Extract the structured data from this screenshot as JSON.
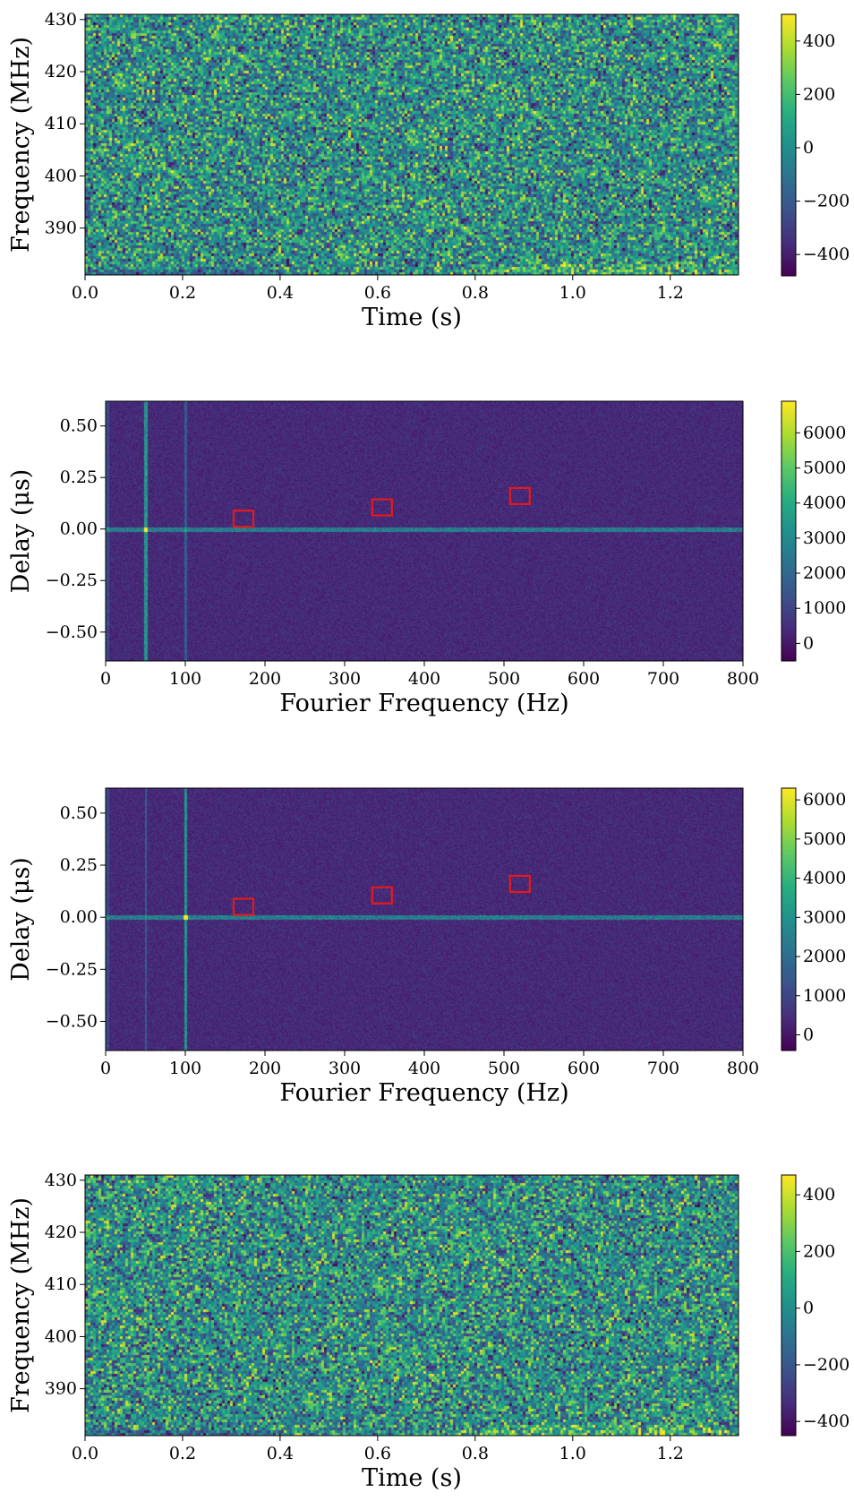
{
  "chart_data": [
    {
      "type": "heatmap",
      "id": "dynamic-spectrum-top",
      "xlabel": "Time (s)",
      "ylabel": "Frequency (MHz)",
      "xlim": [
        0.0,
        1.34
      ],
      "ylim": [
        381,
        431
      ],
      "xticks": [
        0.0,
        0.2,
        0.4,
        0.6,
        0.8,
        1.0,
        1.2
      ],
      "xtick_labels": [
        "0.0",
        "0.2",
        "0.4",
        "0.6",
        "0.8",
        "1.0",
        "1.2"
      ],
      "yticks": [
        390,
        400,
        410,
        420,
        430
      ],
      "ytick_labels": [
        "390",
        "400",
        "410",
        "420",
        "430"
      ],
      "colorscale": "viridis",
      "clim": [
        -480,
        500
      ],
      "colorbar_ticks": [
        400,
        200,
        0,
        -200,
        -400
      ],
      "colorbar_tick_labels": [
        "400",
        "200",
        "0",
        "−200",
        "−400"
      ],
      "pattern": "noise",
      "markers": []
    },
    {
      "type": "heatmap",
      "id": "secondary-spectrum-1",
      "xlabel": "Fourier Frequency (Hz)",
      "ylabel": "Delay (μs)",
      "xlim": [
        0,
        800
      ],
      "ylim": [
        -0.64,
        0.62
      ],
      "xticks": [
        0,
        100,
        200,
        300,
        400,
        500,
        600,
        700,
        800
      ],
      "xtick_labels": [
        "0",
        "100",
        "200",
        "300",
        "400",
        "500",
        "600",
        "700",
        "800"
      ],
      "yticks": [
        0.5,
        0.25,
        0.0,
        -0.25,
        -0.5
      ],
      "ytick_labels": [
        "0.50",
        "0.25",
        "0.00",
        "−0.25",
        "−0.50"
      ],
      "colorscale": "viridis",
      "clim": [
        -500,
        6900
      ],
      "colorbar_ticks": [
        6000,
        5000,
        4000,
        3000,
        2000,
        1000,
        0
      ],
      "colorbar_tick_labels": [
        "6000",
        "5000",
        "4000",
        "3000",
        "2000",
        "1000",
        "0"
      ],
      "pattern": "secondary",
      "strong_line_hz": 50,
      "markers": [
        {
          "x": 173,
          "y": 0.05
        },
        {
          "x": 347,
          "y": 0.105
        },
        {
          "x": 520,
          "y": 0.16
        }
      ]
    },
    {
      "type": "heatmap",
      "id": "secondary-spectrum-2",
      "xlabel": "Fourier Frequency (Hz)",
      "ylabel": "Delay (μs)",
      "xlim": [
        0,
        800
      ],
      "ylim": [
        -0.64,
        0.62
      ],
      "xticks": [
        0,
        100,
        200,
        300,
        400,
        500,
        600,
        700,
        800
      ],
      "xtick_labels": [
        "0",
        "100",
        "200",
        "300",
        "400",
        "500",
        "600",
        "700",
        "800"
      ],
      "yticks": [
        0.5,
        0.25,
        0.0,
        -0.25,
        -0.5
      ],
      "ytick_labels": [
        "0.50",
        "0.25",
        "0.00",
        "−0.25",
        "−0.50"
      ],
      "colorscale": "viridis",
      "clim": [
        -400,
        6300
      ],
      "colorbar_ticks": [
        6000,
        5000,
        4000,
        3000,
        2000,
        1000,
        0
      ],
      "colorbar_tick_labels": [
        "6000",
        "5000",
        "4000",
        "3000",
        "2000",
        "1000",
        "0"
      ],
      "pattern": "secondary",
      "strong_line_hz": 100,
      "markers": [
        {
          "x": 173,
          "y": 0.05
        },
        {
          "x": 347,
          "y": 0.105
        },
        {
          "x": 520,
          "y": 0.16
        }
      ]
    },
    {
      "type": "heatmap",
      "id": "dynamic-spectrum-bottom",
      "xlabel": "Time (s)",
      "ylabel": "Frequency (MHz)",
      "xlim": [
        0.0,
        1.34
      ],
      "ylim": [
        381,
        431
      ],
      "xticks": [
        0.0,
        0.2,
        0.4,
        0.6,
        0.8,
        1.0,
        1.2
      ],
      "xtick_labels": [
        "0.0",
        "0.2",
        "0.4",
        "0.6",
        "0.8",
        "1.0",
        "1.2"
      ],
      "yticks": [
        390,
        400,
        410,
        420,
        430
      ],
      "ytick_labels": [
        "390",
        "400",
        "410",
        "420",
        "430"
      ],
      "colorscale": "viridis",
      "clim": [
        -450,
        470
      ],
      "colorbar_ticks": [
        400,
        200,
        0,
        -200,
        -400
      ],
      "colorbar_tick_labels": [
        "400",
        "200",
        "0",
        "−200",
        "−400"
      ],
      "pattern": "noise",
      "markers": []
    }
  ]
}
